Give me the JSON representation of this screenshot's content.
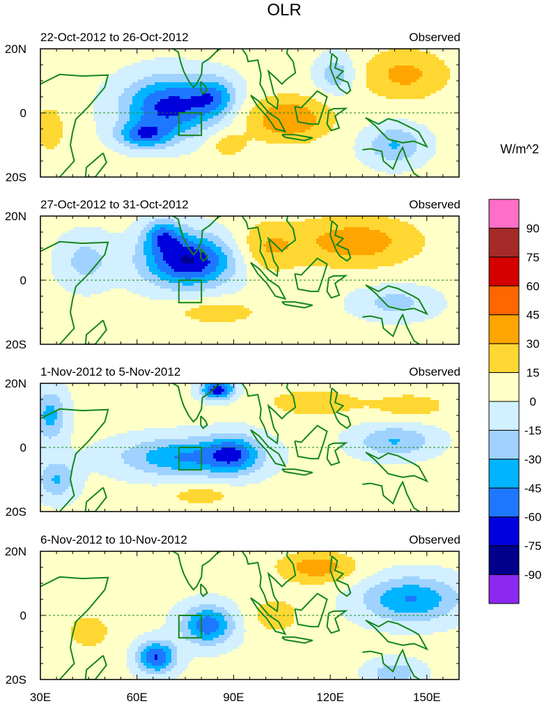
{
  "chart_data": {
    "type": "heatmap",
    "title": "OLR",
    "units": "W/m^2",
    "x_ticks": [
      "30E",
      "60E",
      "90E",
      "120E",
      "150E"
    ],
    "x_tick_values": [
      30,
      60,
      90,
      120,
      150
    ],
    "xlim": [
      30,
      160
    ],
    "ylim": [
      -20,
      20
    ],
    "y_ticks": [
      "20N",
      "0",
      "20S"
    ],
    "y_tick_values": [
      20,
      0,
      -20
    ],
    "colorbar": {
      "labels": [
        "90",
        "75",
        "60",
        "45",
        "30",
        "15",
        "0",
        "-15",
        "-30",
        "-45",
        "-60",
        "-75",
        "-90"
      ],
      "colors": [
        "#ff6ec7",
        "#a52a2a",
        "#d40000",
        "#ff6600",
        "#ffa500",
        "#ffd732",
        "#ffffc8",
        "#d2f0ff",
        "#a0d2ff",
        "#00b4ff",
        "#1e78ff",
        "#0000dc",
        "#00008c",
        "#8c28f0"
      ]
    },
    "panels": [
      {
        "period": "22-Oct-2012 to 26-Oct-2012",
        "label": "Observed",
        "anomalies": [
          {
            "lon": 70,
            "lat": 2,
            "value": -70,
            "rx": 14,
            "ry": 9
          },
          {
            "lon": 84,
            "lat": 5,
            "value": -40,
            "rx": 7,
            "ry": 6
          },
          {
            "lon": 62,
            "lat": -7,
            "value": -50,
            "rx": 8,
            "ry": 4
          },
          {
            "lon": 107,
            "lat": -2,
            "value": 40,
            "rx": 13,
            "ry": 7
          },
          {
            "lon": 143,
            "lat": 12,
            "value": 30,
            "rx": 14,
            "ry": 8
          },
          {
            "lon": 122,
            "lat": 12,
            "value": -30,
            "rx": 6,
            "ry": 6
          },
          {
            "lon": 140,
            "lat": -10,
            "value": -35,
            "rx": 9,
            "ry": 6
          },
          {
            "lon": 33,
            "lat": -5,
            "value": 20,
            "rx": 5,
            "ry": 8
          },
          {
            "lon": 88,
            "lat": -10,
            "value": 20,
            "rx": 6,
            "ry": 4
          }
        ]
      },
      {
        "period": "27-Oct-2012 to 31-Oct-2012",
        "label": "Observed",
        "anomalies": [
          {
            "lon": 76,
            "lat": 6,
            "value": -80,
            "rx": 14,
            "ry": 8
          },
          {
            "lon": 68,
            "lat": 14,
            "value": -45,
            "rx": 6,
            "ry": 5
          },
          {
            "lon": 128,
            "lat": 12,
            "value": 35,
            "rx": 20,
            "ry": 8
          },
          {
            "lon": 100,
            "lat": 10,
            "value": 25,
            "rx": 10,
            "ry": 8
          },
          {
            "lon": 85,
            "lat": -10,
            "value": 20,
            "rx": 14,
            "ry": 4
          },
          {
            "lon": 44,
            "lat": 6,
            "value": -25,
            "rx": 8,
            "ry": 8
          },
          {
            "lon": 140,
            "lat": -7,
            "value": -25,
            "rx": 12,
            "ry": 5
          }
        ]
      },
      {
        "period": "1-Nov-2012 to 5-Nov-2012",
        "label": "Observed",
        "anomalies": [
          {
            "lon": 75,
            "lat": -3,
            "value": -50,
            "rx": 20,
            "ry": 6
          },
          {
            "lon": 90,
            "lat": -2,
            "value": -45,
            "rx": 8,
            "ry": 6
          },
          {
            "lon": 85,
            "lat": 18,
            "value": -75,
            "rx": 5,
            "ry": 3
          },
          {
            "lon": 140,
            "lat": 2,
            "value": -35,
            "rx": 12,
            "ry": 5
          },
          {
            "lon": 115,
            "lat": 14,
            "value": 25,
            "rx": 14,
            "ry": 4
          },
          {
            "lon": 145,
            "lat": 13,
            "value": 20,
            "rx": 12,
            "ry": 4
          },
          {
            "lon": 33,
            "lat": 10,
            "value": -40,
            "rx": 5,
            "ry": 8
          },
          {
            "lon": 35,
            "lat": -10,
            "value": -35,
            "rx": 6,
            "ry": 6
          },
          {
            "lon": 80,
            "lat": -15,
            "value": 20,
            "rx": 10,
            "ry": 3
          }
        ]
      },
      {
        "period": "6-Nov-2012 to 10-Nov-2012",
        "label": "Observed",
        "anomalies": [
          {
            "lon": 82,
            "lat": -3,
            "value": -60,
            "rx": 8,
            "ry": 6
          },
          {
            "lon": 66,
            "lat": -13,
            "value": -65,
            "rx": 6,
            "ry": 5
          },
          {
            "lon": 145,
            "lat": 5,
            "value": -50,
            "rx": 15,
            "ry": 7
          },
          {
            "lon": 116,
            "lat": 15,
            "value": 35,
            "rx": 12,
            "ry": 5
          },
          {
            "lon": 140,
            "lat": -18,
            "value": -30,
            "rx": 8,
            "ry": 4
          },
          {
            "lon": 103,
            "lat": 0,
            "value": 20,
            "rx": 8,
            "ry": 6
          },
          {
            "lon": 45,
            "lat": -5,
            "value": 15,
            "rx": 10,
            "ry": 8
          }
        ]
      }
    ],
    "reference_box": {
      "lon_min": 73,
      "lon_max": 80,
      "lat_min": -7,
      "lat_max": 0
    }
  }
}
